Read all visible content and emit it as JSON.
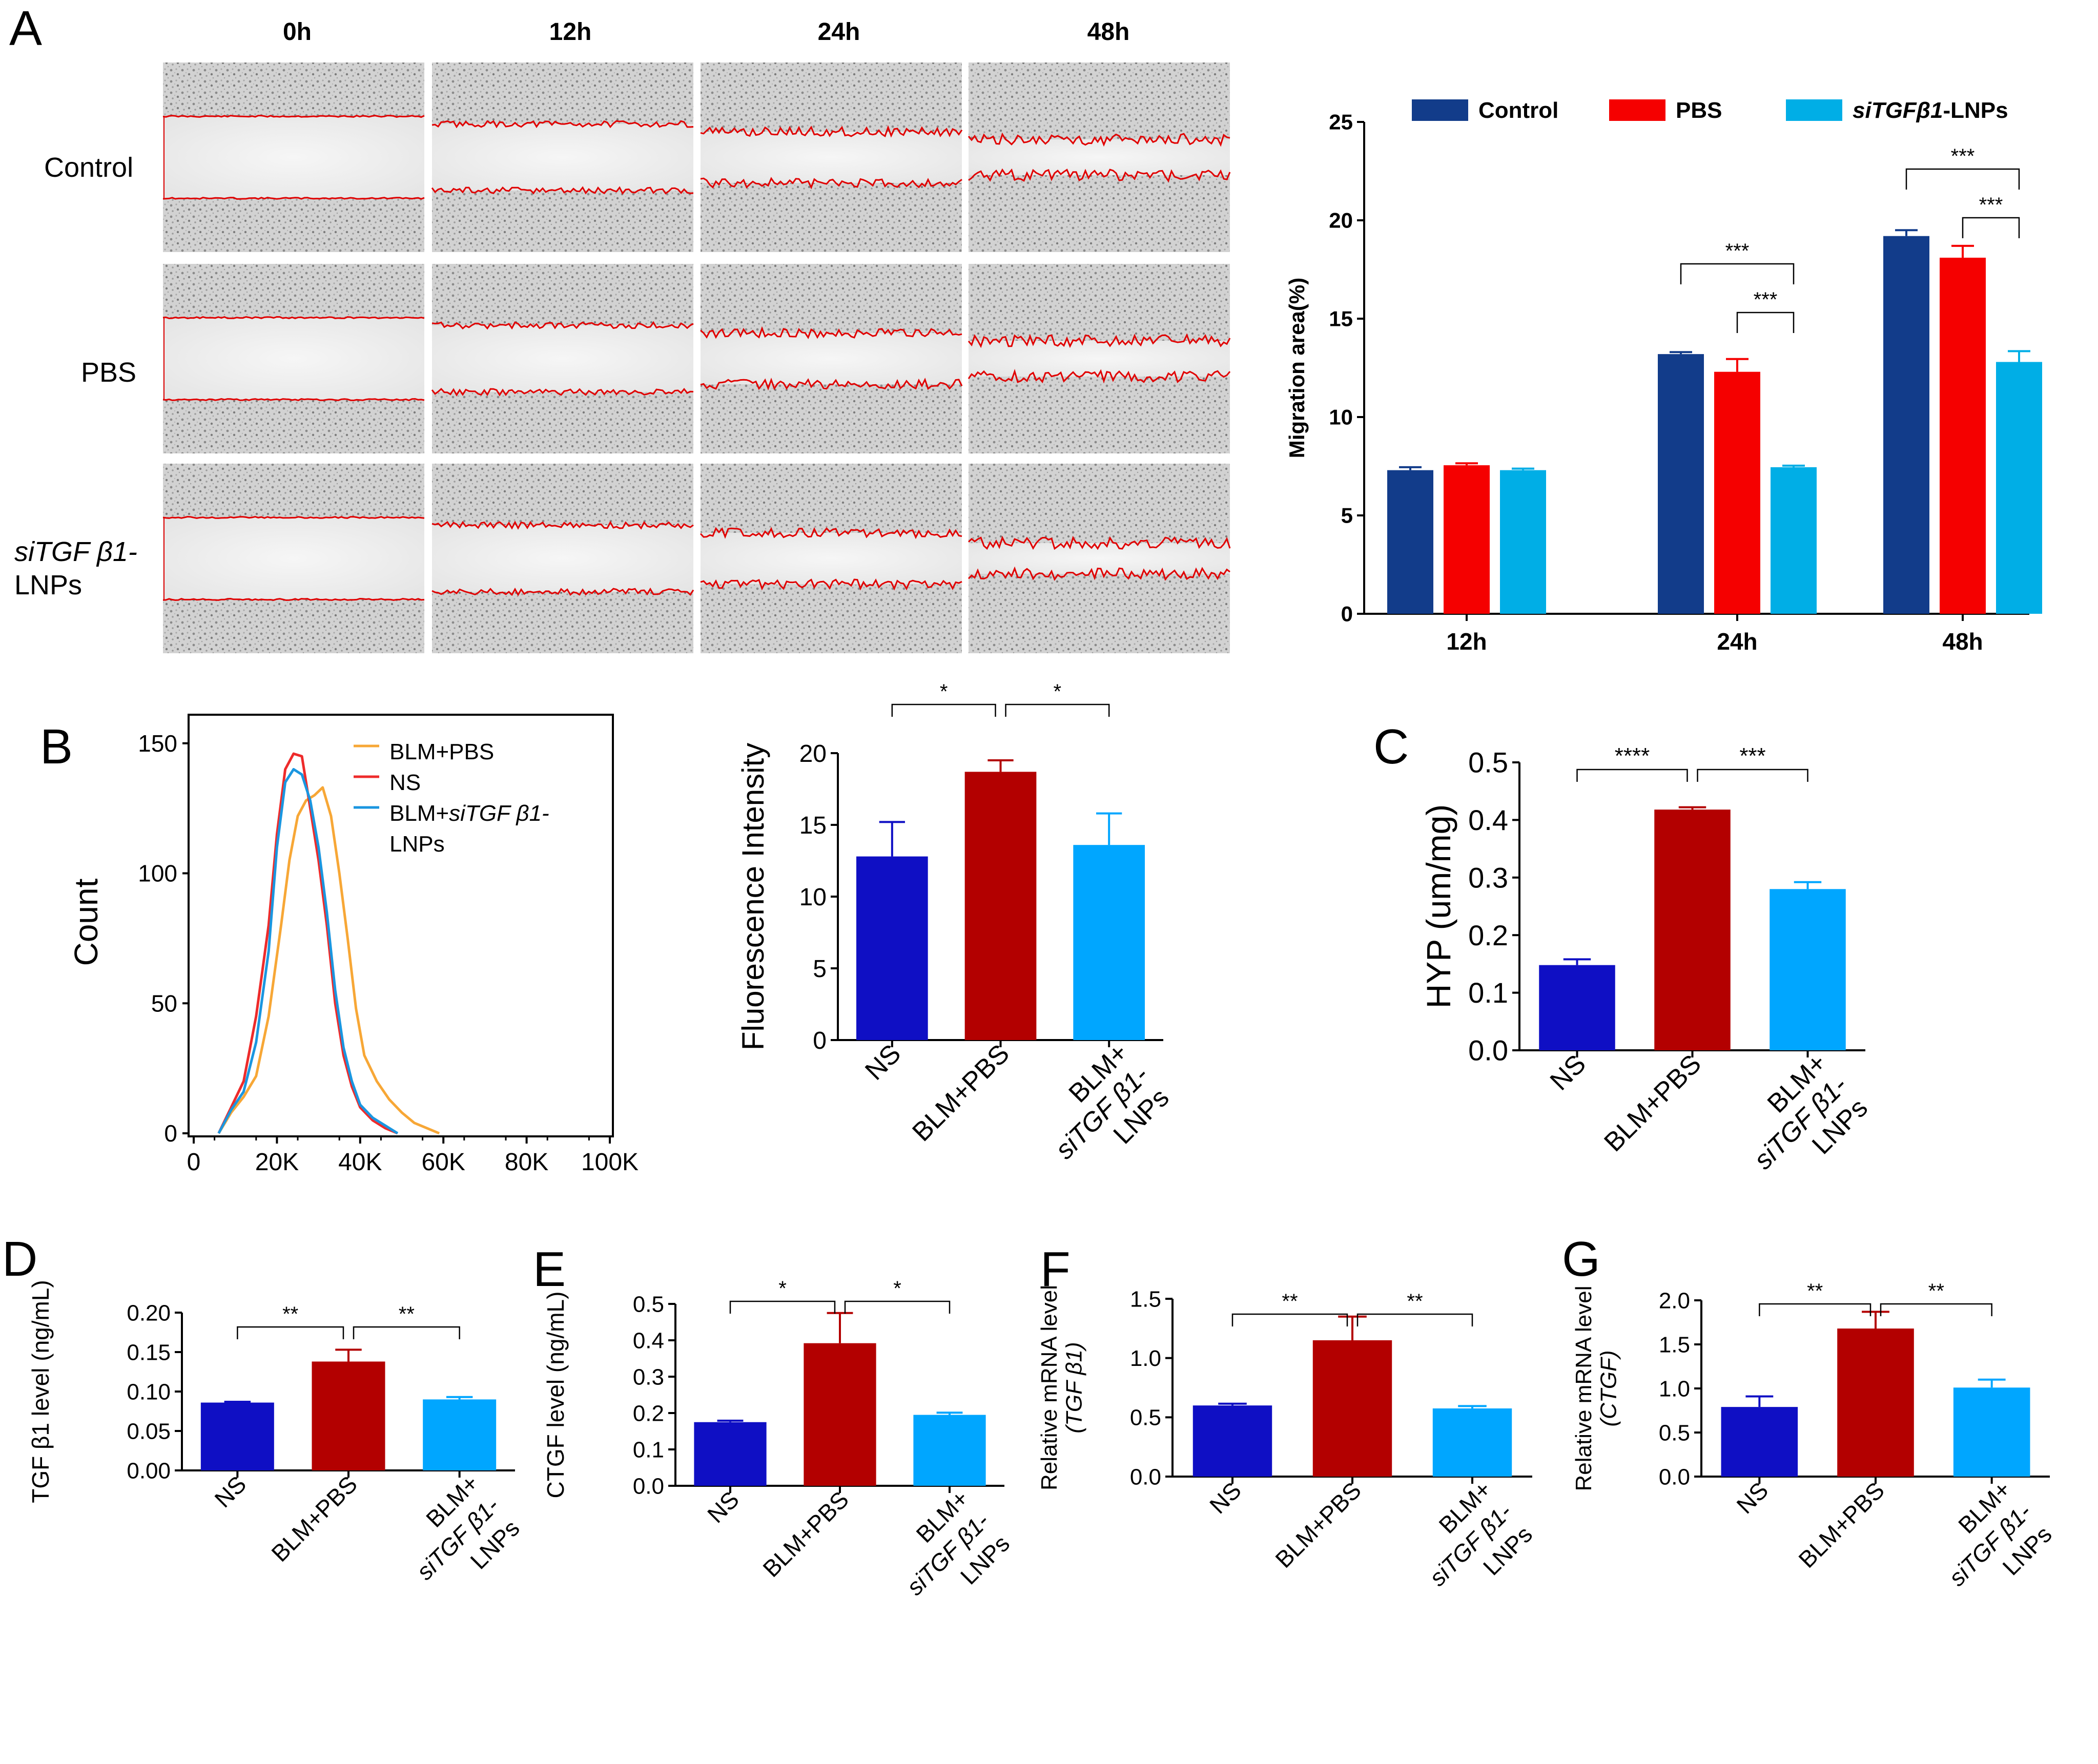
{
  "colors": {
    "ns_blue": "#0f0fc4",
    "blm_red": "#b30000",
    "lnp_cyan": "#00a6ff",
    "control_navy": "#123c8a",
    "pbs_red": "#f50000",
    "sitgf_cyan": "#00aee6",
    "scratch_red": "#e00000",
    "hist_orange": "#f7a736",
    "hist_red": "#ee2b2b",
    "hist_blue": "#1a96e0"
  },
  "panels": {
    "A": {
      "letter": "A"
    },
    "B": {
      "letter": "B"
    },
    "C": {
      "letter": "C"
    },
    "D": {
      "letter": "D"
    },
    "E": {
      "letter": "E"
    },
    "F": {
      "letter": "F"
    },
    "G": {
      "letter": "G"
    }
  },
  "micrographs": {
    "time_labels": [
      "0h",
      "12h",
      "24h",
      "48h"
    ],
    "row_labels": {
      "control": "Control",
      "pbs": "PBS",
      "sitgf_line1": "siTGF β1-",
      "sitgf_line2": "LNPs"
    }
  },
  "chart_data": [
    {
      "id": "A-migration",
      "type": "bar",
      "title": "",
      "xlabel": "",
      "ylabel": "Migration area(%)",
      "ylim": [
        0,
        25
      ],
      "yticks": [
        "0",
        "5",
        "10",
        "15",
        "20",
        "25"
      ],
      "categories": [
        "12h",
        "24h",
        "48h"
      ],
      "series": [
        {
          "name": "Control",
          "values": [
            7.3,
            13.2,
            19.2
          ],
          "errors": [
            0.15,
            0.1,
            0.3
          ]
        },
        {
          "name": "PBS",
          "values": [
            7.55,
            12.3,
            18.1
          ],
          "errors": [
            0.1,
            0.65,
            0.6
          ]
        },
        {
          "name": "siTGFβ1-LNPs",
          "values": [
            7.3,
            7.45,
            12.8
          ],
          "errors": [
            0.08,
            0.08,
            0.55
          ]
        }
      ],
      "legend": [
        "Control",
        "PBS",
        "siTGFβ1-LNPs"
      ],
      "legend_position": "top",
      "significance": [
        "***",
        "***",
        "***",
        "***"
      ]
    },
    {
      "id": "B-histogram",
      "type": "line",
      "xlabel": "",
      "ylabel": "Count",
      "xlim": [
        0,
        100000
      ],
      "ylim": [
        0,
        160
      ],
      "xticks": [
        "0",
        "20K",
        "40K",
        "60K",
        "80K",
        "100K"
      ],
      "yticks": [
        "0",
        "50",
        "100",
        "150"
      ],
      "legend": [
        "BLM+PBS",
        "NS",
        "BLM+siTGF β1-",
        "LNPs"
      ],
      "legend_position": "top-right",
      "series": [
        {
          "name": "BLM+PBS",
          "x": [
            6000,
            9000,
            12000,
            15000,
            18000,
            21000,
            23000,
            25000,
            27000,
            29000,
            31000,
            33000,
            35000,
            37000,
            39000,
            41000,
            44000,
            47000,
            50000,
            53000,
            56000,
            59000
          ],
          "values": [
            0,
            8,
            14,
            22,
            45,
            80,
            105,
            122,
            128,
            130,
            133,
            122,
            100,
            75,
            48,
            30,
            20,
            13,
            8,
            4,
            2,
            0
          ]
        },
        {
          "name": "NS",
          "x": [
            6000,
            9000,
            12000,
            15000,
            18000,
            20000,
            22000,
            24000,
            26000,
            28000,
            30000,
            32000,
            34000,
            36000,
            38000,
            40000,
            43000,
            46000,
            49000
          ],
          "values": [
            0,
            10,
            20,
            45,
            80,
            115,
            140,
            146,
            145,
            125,
            105,
            80,
            50,
            30,
            18,
            10,
            5,
            2,
            0
          ]
        },
        {
          "name": "BLM+siTGF β1-LNPs",
          "x": [
            6000,
            9000,
            12000,
            15000,
            18000,
            20000,
            22000,
            24000,
            26000,
            28000,
            30000,
            32000,
            34000,
            36000,
            38000,
            40000,
            43000,
            46000,
            49000
          ],
          "values": [
            0,
            9,
            16,
            35,
            70,
            110,
            135,
            140,
            138,
            128,
            110,
            85,
            55,
            33,
            20,
            11,
            6,
            3,
            0
          ]
        }
      ]
    },
    {
      "id": "B-fluorescence",
      "type": "bar",
      "ylabel": "Fluorescence Intensity",
      "ylim": [
        0,
        20
      ],
      "yticks": [
        "0",
        "5",
        "10",
        "15",
        "20"
      ],
      "categories": [
        "NS",
        "BLM+PBS",
        "BLM+ siTGF β1- LNPs"
      ],
      "values": [
        12.8,
        18.7,
        13.6
      ],
      "errors": [
        2.4,
        0.8,
        2.2
      ],
      "significance": [
        "*",
        "*"
      ]
    },
    {
      "id": "C-HYP",
      "type": "bar",
      "ylabel": "HYP (um/mg)",
      "ylim": [
        0,
        0.5
      ],
      "yticks": [
        "0.0",
        "0.1",
        "0.2",
        "0.3",
        "0.4",
        "0.5"
      ],
      "categories": [
        "NS",
        "BLM+PBS",
        "BLM+ siTGF β1- LNPs"
      ],
      "values": [
        0.148,
        0.418,
        0.28
      ],
      "errors": [
        0.01,
        0.004,
        0.012
      ],
      "significance": [
        "****",
        "***"
      ]
    },
    {
      "id": "D-TGFb1",
      "type": "bar",
      "ylabel": "TGF β1 level (ng/mL)",
      "ylim": [
        0,
        0.2
      ],
      "yticks": [
        "0.00",
        "0.05",
        "0.10",
        "0.15",
        "0.20"
      ],
      "categories": [
        "NS",
        "BLM+PBS",
        "BLM+ siTGF β1- LNPs"
      ],
      "values": [
        0.086,
        0.138,
        0.09
      ],
      "errors": [
        0.001,
        0.015,
        0.003
      ],
      "significance": [
        "**",
        "**"
      ]
    },
    {
      "id": "E-CTGF",
      "type": "bar",
      "ylabel": "CTGF level (ng/mL)",
      "ylim": [
        0,
        0.5
      ],
      "yticks": [
        "0.0",
        "0.1",
        "0.2",
        "0.3",
        "0.4",
        "0.5"
      ],
      "categories": [
        "NS",
        "BLM+PBS",
        "BLM+ siTGF β1- LNPs"
      ],
      "values": [
        0.175,
        0.392,
        0.195
      ],
      "errors": [
        0.004,
        0.083,
        0.006
      ],
      "significance": [
        "*",
        "*"
      ]
    },
    {
      "id": "F-TGFb1-mRNA",
      "type": "bar",
      "ylabel_line1": "Relative mRNA level",
      "ylabel_line2": "(TGF β1)",
      "ylim": [
        0,
        1.5
      ],
      "yticks": [
        "0.0",
        "0.5",
        "1.0",
        "1.5"
      ],
      "categories": [
        "NS",
        "BLM+PBS",
        "BLM+ siTGF β1- LNPs"
      ],
      "values": [
        0.6,
        1.15,
        0.575
      ],
      "errors": [
        0.015,
        0.2,
        0.02
      ],
      "significance": [
        "**",
        "**"
      ]
    },
    {
      "id": "G-CTGF-mRNA",
      "type": "bar",
      "ylabel_line1": "Relative mRNA level",
      "ylabel_line2": "(CTGF)",
      "ylim": [
        0,
        2.0
      ],
      "yticks": [
        "0.0",
        "0.5",
        "1.0",
        "1.5",
        "2.0"
      ],
      "categories": [
        "NS",
        "BLM+PBS",
        "BLM+ siTGF β1- LNPs"
      ],
      "values": [
        0.79,
        1.68,
        1.01
      ],
      "errors": [
        0.12,
        0.19,
        0.09
      ],
      "significance": [
        "**",
        "**"
      ]
    }
  ]
}
